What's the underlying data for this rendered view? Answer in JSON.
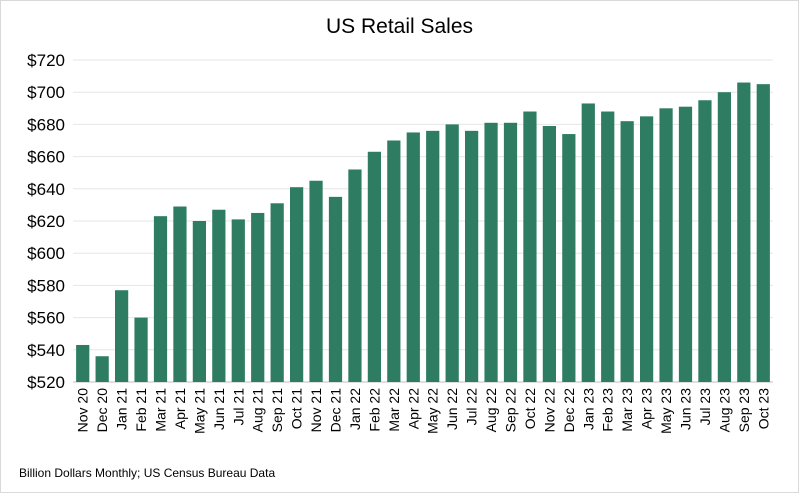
{
  "chart_data": {
    "type": "bar",
    "title": "US Retail Sales",
    "xlabel": "",
    "ylabel": "",
    "ylim": [
      520,
      720
    ],
    "yticks": [
      520,
      540,
      560,
      580,
      600,
      620,
      640,
      660,
      680,
      700,
      720
    ],
    "ytick_labels": [
      "$520",
      "$540",
      "$560",
      "$580",
      "$600",
      "$620",
      "$640",
      "$660",
      "$680",
      "$700",
      "$720"
    ],
    "grid": true,
    "legend": "none",
    "bar_color": "#2e7d62",
    "categories": [
      "Nov 20",
      "Dec 20",
      "Jan 21",
      "Feb 21",
      "Mar 21",
      "Apr 21",
      "May 21",
      "Jun 21",
      "Jul 21",
      "Aug 21",
      "Sep 21",
      "Oct 21",
      "Nov 21",
      "Dec 21",
      "Jan 22",
      "Feb 22",
      "Mar 22",
      "Apr 22",
      "May 22",
      "Jun 22",
      "Jul 22",
      "Aug 22",
      "Sep 22",
      "Oct 22",
      "Nov 22",
      "Dec 22",
      "Jan 23",
      "Feb 23",
      "Mar 23",
      "Apr 23",
      "May 23",
      "Jun 23",
      "Jul 23",
      "Aug 23",
      "Sep 23",
      "Oct 23"
    ],
    "values": [
      543,
      536,
      577,
      560,
      623,
      629,
      620,
      627,
      621,
      625,
      631,
      641,
      645,
      635,
      652,
      663,
      670,
      675,
      676,
      680,
      676,
      681,
      681,
      688,
      679,
      674,
      693,
      688,
      682,
      685,
      690,
      691,
      695,
      700,
      706,
      705
    ]
  },
  "footnote": "Billion Dollars Monthly; US Census Bureau Data"
}
